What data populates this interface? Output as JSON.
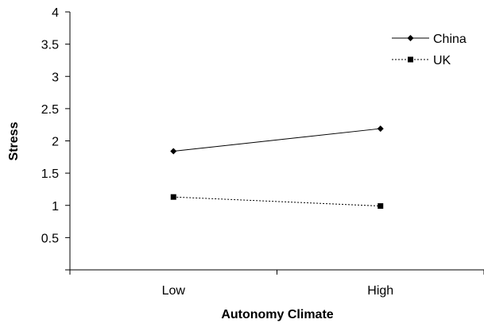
{
  "chart_data": {
    "type": "line",
    "title": "",
    "xlabel": "Autonomy Climate",
    "ylabel": "Stress",
    "categories": [
      "Low",
      "High"
    ],
    "ylim": [
      0,
      4
    ],
    "yticks": [
      "0",
      "0.5",
      "1",
      "1.5",
      "2",
      "2.5",
      "3",
      "3.5",
      "4"
    ],
    "grid": false,
    "legend_position": "top-right",
    "series": [
      {
        "name": "China",
        "values": [
          1.84,
          2.19
        ],
        "marker": "diamond",
        "line_style": "solid",
        "color": "#000000"
      },
      {
        "name": "UK",
        "values": [
          1.13,
          0.99
        ],
        "marker": "square",
        "line_style": "dotted",
        "color": "#000000"
      }
    ]
  }
}
